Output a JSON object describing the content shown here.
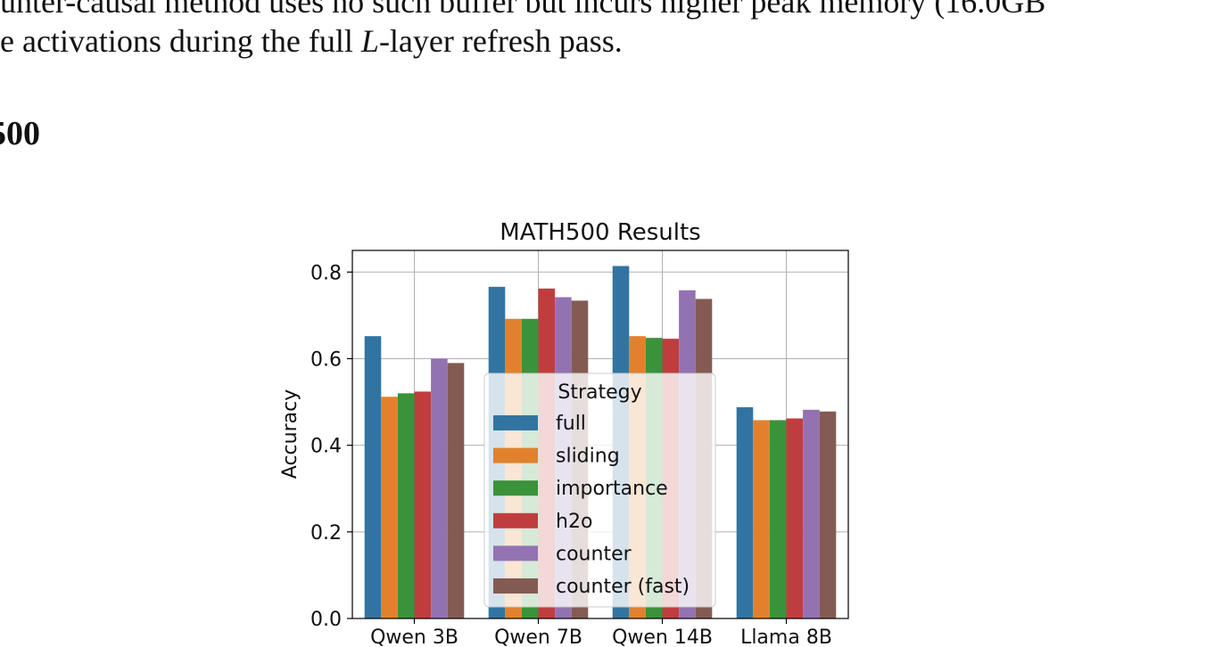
{
  "document": {
    "line1": "unter-causal method uses no such buffer but incurs higher peak memory (16.0GB",
    "line2_before": "e activations during the full ",
    "line2_var": "L",
    "line2_after": "-layer refresh pass.",
    "section_heading": "500"
  },
  "chart_data": {
    "type": "bar",
    "title": "MATH500 Results",
    "xlabel": "",
    "ylabel": "Accuracy",
    "ylim": [
      0,
      0.85
    ],
    "yticks": [
      0.0,
      0.2,
      0.4,
      0.6,
      0.8
    ],
    "ytick_labels": [
      "0.0",
      "0.2",
      "0.4",
      "0.6",
      "0.8"
    ],
    "categories": [
      "Qwen 3B",
      "Qwen 7B",
      "Qwen 14B",
      "Llama 8B"
    ],
    "grid": true,
    "legend": {
      "title": "Strategy",
      "placement": "center"
    },
    "series": [
      {
        "name": "full",
        "color": "#3274a1",
        "values": [
          0.652,
          0.766,
          0.814,
          0.488
        ]
      },
      {
        "name": "sliding",
        "color": "#e1812c",
        "values": [
          0.512,
          0.692,
          0.652,
          0.458
        ]
      },
      {
        "name": "importance",
        "color": "#3a923a",
        "values": [
          0.52,
          0.692,
          0.648,
          0.458
        ]
      },
      {
        "name": "h2o",
        "color": "#c03d3e",
        "values": [
          0.524,
          0.762,
          0.646,
          0.462
        ]
      },
      {
        "name": "counter",
        "color": "#9372b2",
        "values": [
          0.6,
          0.742,
          0.758,
          0.482
        ]
      },
      {
        "name": "counter (fast)",
        "color": "#845b53",
        "values": [
          0.59,
          0.734,
          0.738,
          0.478
        ]
      }
    ]
  }
}
